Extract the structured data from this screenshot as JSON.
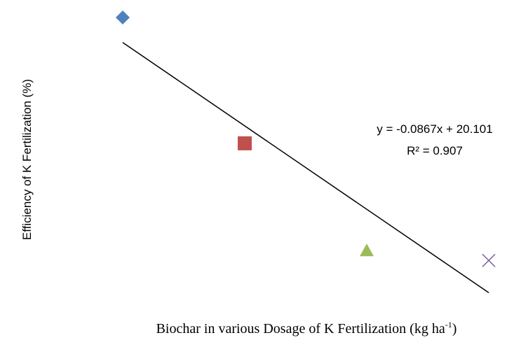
{
  "chart_data": {
    "type": "scatter",
    "y_label": "Efficiency of K Fertilization (%)",
    "x_label": [
      "Biochar in various Dosage of K Fertilization (kg ha",
      "-1",
      ")"
    ],
    "x": [
      0,
      50,
      100,
      150
    ],
    "values": [
      21.4,
      14.86,
      9.28,
      8.77
    ],
    "markers": [
      "diamond",
      "square",
      "triangle",
      "x"
    ],
    "colors": [
      "#4f81bd",
      "#c0504d",
      "#9bbb59",
      "#8064a2"
    ],
    "xlim": [
      0,
      150
    ],
    "ylim": [
      6,
      22
    ],
    "trendline": {
      "slope": -0.0867,
      "intercept": 20.101,
      "color": "#000000",
      "equation": "y = -0.0867x + 20.101",
      "r2_label": "R² = 0.907"
    }
  }
}
